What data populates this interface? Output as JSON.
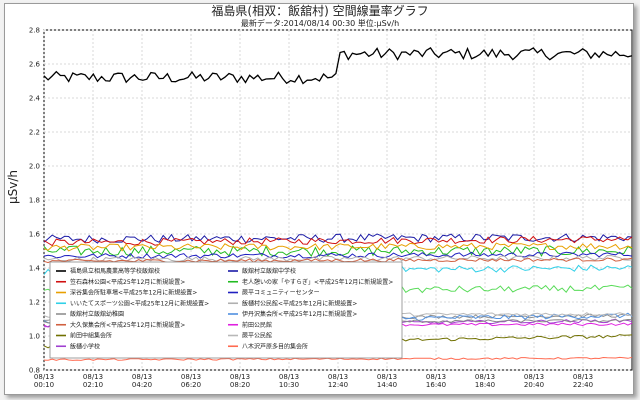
{
  "chart_data": {
    "type": "line",
    "title": "福島県(相双：飯舘村) 空間線量率グラフ",
    "subtitle": "最新データ:2014/08/14 00:30  単位:μSv/h",
    "ylabel": "μSv/h",
    "xlabel": "",
    "ylim": [
      0.8,
      2.8
    ],
    "yticks": [
      "0.8",
      "1.0",
      "1.2",
      "1.4",
      "1.6",
      "1.8",
      "2.0",
      "2.2",
      "2.4",
      "2.6",
      "2.8"
    ],
    "xticks": [
      {
        "date": "08/13",
        "time": "00:10"
      },
      {
        "date": "08/13",
        "time": "02:10"
      },
      {
        "date": "08/13",
        "time": "04:20"
      },
      {
        "date": "08/13",
        "time": "06:20"
      },
      {
        "date": "08/13",
        "time": "08:20"
      },
      {
        "date": "08/13",
        "time": "10:30"
      },
      {
        "date": "08/13",
        "time": "12:40"
      },
      {
        "date": "08/13",
        "time": "14:40"
      },
      {
        "date": "08/13",
        "time": "16:40"
      },
      {
        "date": "08/13",
        "time": "18:40"
      },
      {
        "date": "08/13",
        "time": "20:40"
      },
      {
        "date": "08/13",
        "time": "22:40"
      }
    ],
    "grid": true,
    "legend_position": "bottom-left",
    "series": [
      {
        "name": "福島県立相馬農業高等学校飯舘校",
        "color": "#000000",
        "start": 2.52,
        "end": 2.66,
        "step_at": 0.5,
        "noise": 0.035
      },
      {
        "name": "飯舘村立飯舘中学校",
        "color": "#1a1aa6",
        "start": 1.57,
        "end": 1.58,
        "noise": 0.025
      },
      {
        "name": "笠石森林公園<平成25年12月に新規設置>",
        "color": "#d01010",
        "start": 1.55,
        "end": 1.57,
        "noise": 0.02
      },
      {
        "name": "老人憩いの家「やすらぎ」<平成25年12月に新規設置>",
        "color": "#22bb22",
        "start": 1.5,
        "end": 1.5,
        "noise": 0.03
      },
      {
        "name": "深谷集会所駐車場<平成25年12月に新規設置>",
        "color": "#e8a000",
        "start": 1.52,
        "end": 1.53,
        "noise": 0.02
      },
      {
        "name": "蕨平コミュニティーセンター",
        "color": "#2020c0",
        "start": 1.47,
        "end": 1.48,
        "noise": 0.015
      },
      {
        "name": "いいたてスポーツ公園<平成25年12月に新規設置>",
        "color": "#30d0e8",
        "start": 1.38,
        "end": 1.4,
        "noise": 0.02
      },
      {
        "name": "飯樋村公民館<平成25年12月に新規設置>",
        "color": "#b0b0b0",
        "start": 1.45,
        "end": 1.46,
        "noise": 0.015
      },
      {
        "name": "飯舘村立飯舘幼稚園",
        "color": "#909090",
        "start": 1.1,
        "end": 1.12,
        "noise": 0.01
      },
      {
        "name": "伊丹沢集会所<平成25年12月に新規設置>",
        "color": "#5090e0",
        "start": 1.08,
        "end": 1.12,
        "noise": 0.015
      },
      {
        "name": "大久保集会所<平成25年12月に新規設置>",
        "color": "#d06040",
        "start": 1.44,
        "end": 1.45,
        "noise": 0.01
      },
      {
        "name": "前田公民館",
        "color": "#e020e0",
        "start": 1.06,
        "end": 1.07,
        "noise": 0.008
      },
      {
        "name": "前田中組集会所",
        "color": "#707000",
        "start": 0.94,
        "end": 1.0,
        "noise": 0.01
      },
      {
        "name": "蕨平公民館",
        "color": "#b8b8b8",
        "start": 1.12,
        "end": 1.13,
        "noise": 0.01
      },
      {
        "name": "飯樋小学校",
        "color": "#a040d0",
        "start": 1.06,
        "end": 1.09,
        "noise": 0.01
      },
      {
        "name": "八木沢芦原多目的集会所",
        "color": "#ff6a50",
        "start": 0.86,
        "end": 0.87,
        "noise": 0.005
      },
      {
        "color": "#5adc5a",
        "start": 1.26,
        "end": 1.28,
        "noise": 0.02
      },
      {
        "color": "#888888",
        "start": 1.08,
        "end": 1.09,
        "noise": 0.008
      }
    ]
  }
}
